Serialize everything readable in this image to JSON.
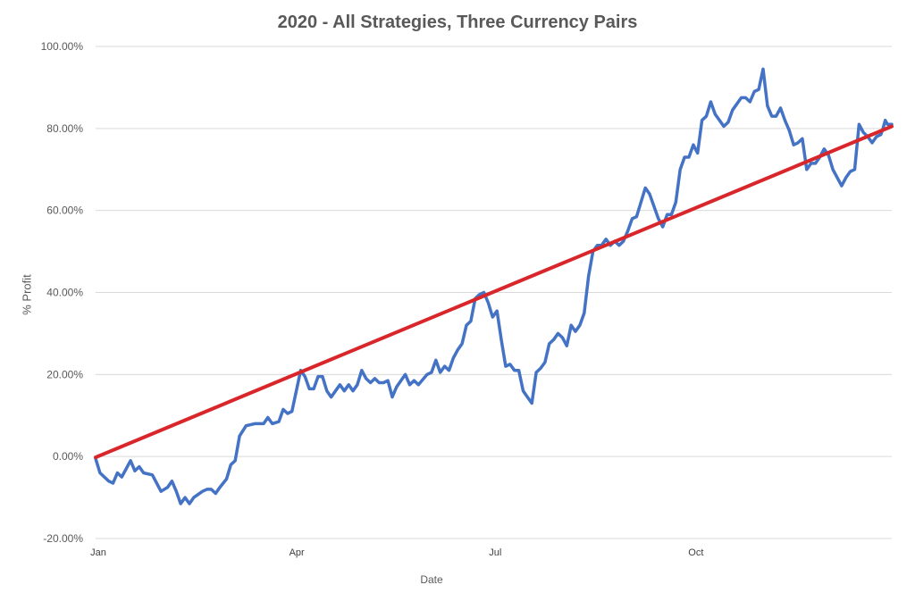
{
  "chart_data": {
    "type": "line",
    "title": "2020 - All Strategies, Three Currency Pairs",
    "xlabel": "Date",
    "ylabel": "% Profit",
    "x_tick_labels": [
      "Jan",
      "Apr",
      "Jul",
      "Oct"
    ],
    "y_tick_labels": [
      "-20.00%",
      "0.00%",
      "20.00%",
      "40.00%",
      "60.00%",
      "80.00%",
      "100.00%"
    ],
    "y_ticks": [
      -20,
      0,
      20,
      40,
      60,
      80,
      100
    ],
    "ylim": [
      -20,
      100
    ],
    "xlim": [
      "2020-01-01",
      "2020-12-31"
    ],
    "grid": "horizontal",
    "legend": "none",
    "series": [
      {
        "kind": "profit",
        "color": "#4472C4",
        "points": [
          [
            "2020-01-01",
            -0.5
          ],
          [
            "2020-01-03",
            -4
          ],
          [
            "2020-01-07",
            -6
          ],
          [
            "2020-01-09",
            -6.5
          ],
          [
            "2020-01-11",
            -4
          ],
          [
            "2020-01-13",
            -5
          ],
          [
            "2020-01-17",
            -1
          ],
          [
            "2020-01-19",
            -3.5
          ],
          [
            "2020-01-21",
            -2.5
          ],
          [
            "2020-01-23",
            -4
          ],
          [
            "2020-01-27",
            -4.5
          ],
          [
            "2020-01-31",
            -8.5
          ],
          [
            "2020-02-03",
            -7.5
          ],
          [
            "2020-02-05",
            -6
          ],
          [
            "2020-02-07",
            -8.5
          ],
          [
            "2020-02-09",
            -11.5
          ],
          [
            "2020-02-11",
            -10
          ],
          [
            "2020-02-13",
            -11.5
          ],
          [
            "2020-02-15",
            -10
          ],
          [
            "2020-02-19",
            -8.5
          ],
          [
            "2020-02-21",
            -8
          ],
          [
            "2020-02-23",
            -8
          ],
          [
            "2020-02-25",
            -9
          ],
          [
            "2020-02-27",
            -7.5
          ],
          [
            "2020-03-01",
            -5.5
          ],
          [
            "2020-03-03",
            -2
          ],
          [
            "2020-03-05",
            -1
          ],
          [
            "2020-03-07",
            5
          ],
          [
            "2020-03-10",
            7.5
          ],
          [
            "2020-03-14",
            8
          ],
          [
            "2020-03-18",
            8
          ],
          [
            "2020-03-20",
            9.5
          ],
          [
            "2020-03-22",
            8
          ],
          [
            "2020-03-25",
            8.5
          ],
          [
            "2020-03-27",
            11.5
          ],
          [
            "2020-03-29",
            10.5
          ],
          [
            "2020-03-31",
            11
          ],
          [
            "2020-04-04",
            21
          ],
          [
            "2020-04-06",
            19.5
          ],
          [
            "2020-04-08",
            16.5
          ],
          [
            "2020-04-10",
            16.5
          ],
          [
            "2020-04-12",
            19.5
          ],
          [
            "2020-04-14",
            19.5
          ],
          [
            "2020-04-16",
            16
          ],
          [
            "2020-04-18",
            14.5
          ],
          [
            "2020-04-20",
            16
          ],
          [
            "2020-04-22",
            17.5
          ],
          [
            "2020-04-24",
            16
          ],
          [
            "2020-04-26",
            17.5
          ],
          [
            "2020-04-28",
            16
          ],
          [
            "2020-04-30",
            17.5
          ],
          [
            "2020-05-02",
            21
          ],
          [
            "2020-05-04",
            19
          ],
          [
            "2020-05-06",
            18
          ],
          [
            "2020-05-08",
            19
          ],
          [
            "2020-05-10",
            18
          ],
          [
            "2020-05-12",
            18
          ],
          [
            "2020-05-14",
            18.5
          ],
          [
            "2020-05-16",
            14.5
          ],
          [
            "2020-05-18",
            17
          ],
          [
            "2020-05-22",
            20
          ],
          [
            "2020-05-24",
            17.5
          ],
          [
            "2020-05-26",
            18.5
          ],
          [
            "2020-05-28",
            17.5
          ],
          [
            "2020-06-01",
            20
          ],
          [
            "2020-06-03",
            20.5
          ],
          [
            "2020-06-05",
            23.5
          ],
          [
            "2020-06-07",
            20.5
          ],
          [
            "2020-06-09",
            22
          ],
          [
            "2020-06-11",
            21
          ],
          [
            "2020-06-13",
            24
          ],
          [
            "2020-06-15",
            26
          ],
          [
            "2020-06-17",
            27.5
          ],
          [
            "2020-06-19",
            32
          ],
          [
            "2020-06-21",
            33
          ],
          [
            "2020-06-23",
            38.5
          ],
          [
            "2020-06-25",
            39.5
          ],
          [
            "2020-06-27",
            40
          ],
          [
            "2020-06-29",
            37.5
          ],
          [
            "2020-07-01",
            34
          ],
          [
            "2020-07-03",
            35.5
          ],
          [
            "2020-07-05",
            28.5
          ],
          [
            "2020-07-07",
            22
          ],
          [
            "2020-07-09",
            22.5
          ],
          [
            "2020-07-11",
            21
          ],
          [
            "2020-07-13",
            21
          ],
          [
            "2020-07-15",
            16
          ],
          [
            "2020-07-17",
            14.5
          ],
          [
            "2020-07-19",
            13
          ],
          [
            "2020-07-21",
            20.5
          ],
          [
            "2020-07-23",
            21.5
          ],
          [
            "2020-07-25",
            23
          ],
          [
            "2020-07-27",
            27.5
          ],
          [
            "2020-07-29",
            28.5
          ],
          [
            "2020-07-31",
            30
          ],
          [
            "2020-08-02",
            29
          ],
          [
            "2020-08-04",
            27
          ],
          [
            "2020-08-06",
            32
          ],
          [
            "2020-08-08",
            30.5
          ],
          [
            "2020-08-10",
            32
          ],
          [
            "2020-08-12",
            35
          ],
          [
            "2020-08-14",
            44
          ],
          [
            "2020-08-16",
            50
          ],
          [
            "2020-08-18",
            51.5
          ],
          [
            "2020-08-20",
            51.5
          ],
          [
            "2020-08-22",
            53
          ],
          [
            "2020-08-24",
            51.5
          ],
          [
            "2020-08-26",
            52.5
          ],
          [
            "2020-08-28",
            51.5
          ],
          [
            "2020-08-30",
            52.5
          ],
          [
            "2020-09-01",
            55
          ],
          [
            "2020-09-03",
            58
          ],
          [
            "2020-09-05",
            58.5
          ],
          [
            "2020-09-07",
            62
          ],
          [
            "2020-09-09",
            65.5
          ],
          [
            "2020-09-11",
            64
          ],
          [
            "2020-09-13",
            61
          ],
          [
            "2020-09-15",
            58
          ],
          [
            "2020-09-17",
            56
          ],
          [
            "2020-09-19",
            59
          ],
          [
            "2020-09-21",
            59
          ],
          [
            "2020-09-23",
            62
          ],
          [
            "2020-09-25",
            70
          ],
          [
            "2020-09-27",
            73
          ],
          [
            "2020-09-29",
            73
          ],
          [
            "2020-10-01",
            76
          ],
          [
            "2020-10-03",
            74
          ],
          [
            "2020-10-05",
            82
          ],
          [
            "2020-10-07",
            83
          ],
          [
            "2020-10-09",
            86.5
          ],
          [
            "2020-10-11",
            83.5
          ],
          [
            "2020-10-13",
            82
          ],
          [
            "2020-10-15",
            80.5
          ],
          [
            "2020-10-17",
            81.5
          ],
          [
            "2020-10-19",
            84.5
          ],
          [
            "2020-10-21",
            86
          ],
          [
            "2020-10-23",
            87.5
          ],
          [
            "2020-10-25",
            87.5
          ],
          [
            "2020-10-27",
            86.5
          ],
          [
            "2020-10-29",
            89
          ],
          [
            "2020-10-31",
            89.5
          ],
          [
            "2020-11-02",
            94.5
          ],
          [
            "2020-11-04",
            85.5
          ],
          [
            "2020-11-06",
            83
          ],
          [
            "2020-11-08",
            83
          ],
          [
            "2020-11-10",
            85
          ],
          [
            "2020-11-12",
            82
          ],
          [
            "2020-11-14",
            79.5
          ],
          [
            "2020-11-16",
            76
          ],
          [
            "2020-11-18",
            76.5
          ],
          [
            "2020-11-20",
            77.5
          ],
          [
            "2020-11-22",
            70
          ],
          [
            "2020-11-24",
            71.5
          ],
          [
            "2020-11-26",
            71.5
          ],
          [
            "2020-11-28",
            73
          ],
          [
            "2020-11-30",
            75
          ],
          [
            "2020-12-02",
            73.5
          ],
          [
            "2020-12-04",
            70
          ],
          [
            "2020-12-06",
            68
          ],
          [
            "2020-12-08",
            66
          ],
          [
            "2020-12-10",
            68
          ],
          [
            "2020-12-12",
            69.5
          ],
          [
            "2020-12-14",
            70
          ],
          [
            "2020-12-16",
            81
          ],
          [
            "2020-12-18",
            79
          ],
          [
            "2020-12-20",
            78
          ],
          [
            "2020-12-22",
            76.5
          ],
          [
            "2020-12-24",
            78
          ],
          [
            "2020-12-26",
            78.5
          ],
          [
            "2020-12-27",
            80
          ],
          [
            "2020-12-28",
            82
          ],
          [
            "2020-12-29",
            81
          ],
          [
            "2020-12-30",
            81
          ],
          [
            "2020-12-31",
            81
          ]
        ]
      },
      {
        "kind": "trend",
        "color": "#D9262B",
        "points": [
          [
            "2020-01-01",
            -0.2
          ],
          [
            "2020-12-31",
            80.5
          ]
        ]
      }
    ]
  }
}
